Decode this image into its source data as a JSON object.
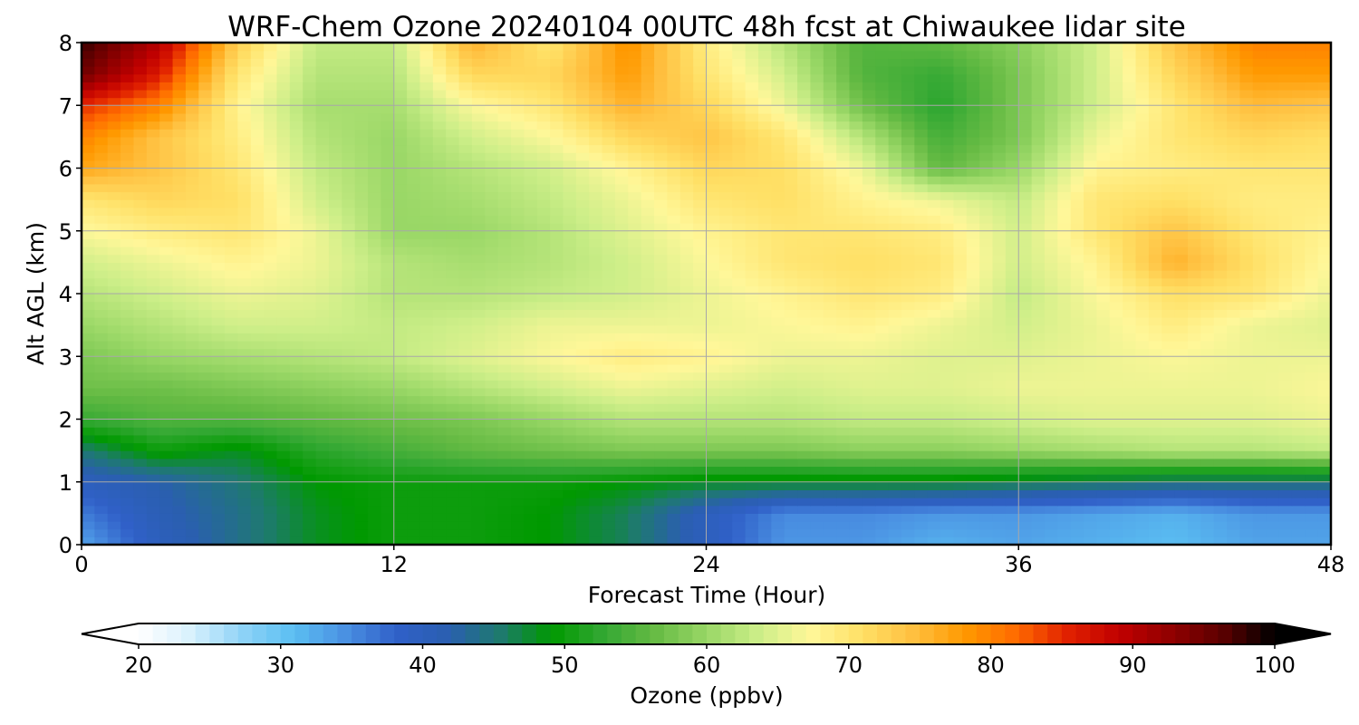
{
  "chart_data": {
    "type": "heatmap",
    "title": "WRF-Chem Ozone  20240104 00UTC 48h fcst at Chiwaukee lidar site",
    "xlabel": "Forecast Time (Hour)",
    "ylabel": "Alt AGL (km)",
    "xlim": [
      0,
      48
    ],
    "ylim": [
      0,
      8
    ],
    "xticks": [
      "0",
      "12",
      "24",
      "36",
      "48"
    ],
    "yticks": [
      "0",
      "1",
      "2",
      "3",
      "4",
      "5",
      "6",
      "7",
      "8"
    ],
    "grid": true,
    "x": [
      0,
      3,
      6,
      9,
      12,
      15,
      18,
      21,
      24,
      27,
      30,
      33,
      36,
      39,
      42,
      45,
      48
    ],
    "y": [
      0,
      0.5,
      1,
      1.5,
      2,
      2.5,
      3,
      3.5,
      4,
      4.5,
      5,
      5.5,
      6,
      6.5,
      7,
      7.5,
      8
    ],
    "z": [
      [
        33,
        40,
        44,
        48,
        50,
        50,
        49,
        46,
        40,
        34,
        34,
        32,
        33,
        32,
        31,
        33,
        33
      ],
      [
        36,
        41,
        44,
        48,
        50,
        50,
        49,
        46,
        40,
        35,
        35,
        34,
        34,
        33,
        32,
        34,
        34
      ],
      [
        40,
        42,
        45,
        49,
        50,
        50,
        50,
        49,
        48,
        48,
        48,
        48,
        47,
        46,
        45,
        45,
        45
      ],
      [
        45,
        50,
        48,
        52,
        54,
        56,
        57,
        58,
        58,
        58,
        59,
        59,
        60,
        61,
        62,
        62,
        63
      ],
      [
        53,
        55,
        55,
        56,
        57,
        58,
        60,
        62,
        62,
        62,
        63,
        63,
        64,
        65,
        65,
        65,
        66
      ],
      [
        57,
        57,
        58,
        59,
        60,
        62,
        64,
        66,
        65,
        64,
        65,
        65,
        66,
        66,
        66,
        66,
        67
      ],
      [
        58,
        60,
        61,
        62,
        63,
        65,
        67,
        69,
        68,
        66,
        66,
        65,
        65,
        66,
        67,
        66,
        66
      ],
      [
        60,
        62,
        64,
        64,
        63,
        64,
        66,
        66,
        66,
        67,
        68,
        66,
        64,
        66,
        69,
        66,
        65
      ],
      [
        62,
        64,
        66,
        65,
        62,
        62,
        63,
        64,
        66,
        68,
        70,
        69,
        63,
        67,
        71,
        70,
        66
      ],
      [
        64,
        66,
        68,
        66,
        62,
        61,
        62,
        64,
        67,
        70,
        71,
        70,
        64,
        68,
        76,
        71,
        67
      ],
      [
        67,
        69,
        70,
        66,
        60,
        60,
        62,
        65,
        68,
        70,
        70,
        69,
        64,
        70,
        74,
        70,
        68
      ],
      [
        70,
        72,
        71,
        64,
        60,
        61,
        63,
        66,
        70,
        71,
        68,
        66,
        63,
        70,
        71,
        69,
        69
      ],
      [
        77,
        74,
        70,
        63,
        60,
        62,
        64,
        68,
        72,
        71,
        66,
        56,
        60,
        68,
        69,
        70,
        70
      ],
      [
        80,
        74,
        69,
        62,
        60,
        64,
        67,
        72,
        74,
        70,
        62,
        54,
        58,
        66,
        70,
        72,
        71
      ],
      [
        85,
        80,
        68,
        61,
        61,
        67,
        70,
        76,
        72,
        66,
        57,
        52,
        58,
        64,
        70,
        75,
        74
      ],
      [
        95,
        86,
        70,
        62,
        62,
        72,
        72,
        78,
        70,
        64,
        55,
        53,
        58,
        64,
        72,
        78,
        78
      ],
      [
        98,
        90,
        73,
        63,
        63,
        76,
        70,
        79,
        69,
        62,
        55,
        56,
        59,
        64,
        74,
        80,
        80
      ]
    ],
    "colorbar": {
      "label": "Ozone  (ppbv)",
      "range": [
        20,
        100
      ],
      "ticks": [
        "20",
        "30",
        "40",
        "50",
        "60",
        "70",
        "80",
        "90",
        "100"
      ],
      "extend": "both",
      "orientation": "horizontal",
      "placement": "bottom",
      "colors": [
        "#ffffff",
        "#d9f1fd",
        "#8fd3f7",
        "#5bbff2",
        "#4a90e2",
        "#3060c8",
        "#2a5fb0",
        "#1e7a6e",
        "#009900",
        "#33a833",
        "#66bb44",
        "#99d766",
        "#ccee88",
        "#fff799",
        "#ffe066",
        "#ffc040",
        "#ff9900",
        "#ff6a00",
        "#e02000",
        "#c00000",
        "#900000",
        "#5a0000",
        "#000000"
      ]
    }
  }
}
